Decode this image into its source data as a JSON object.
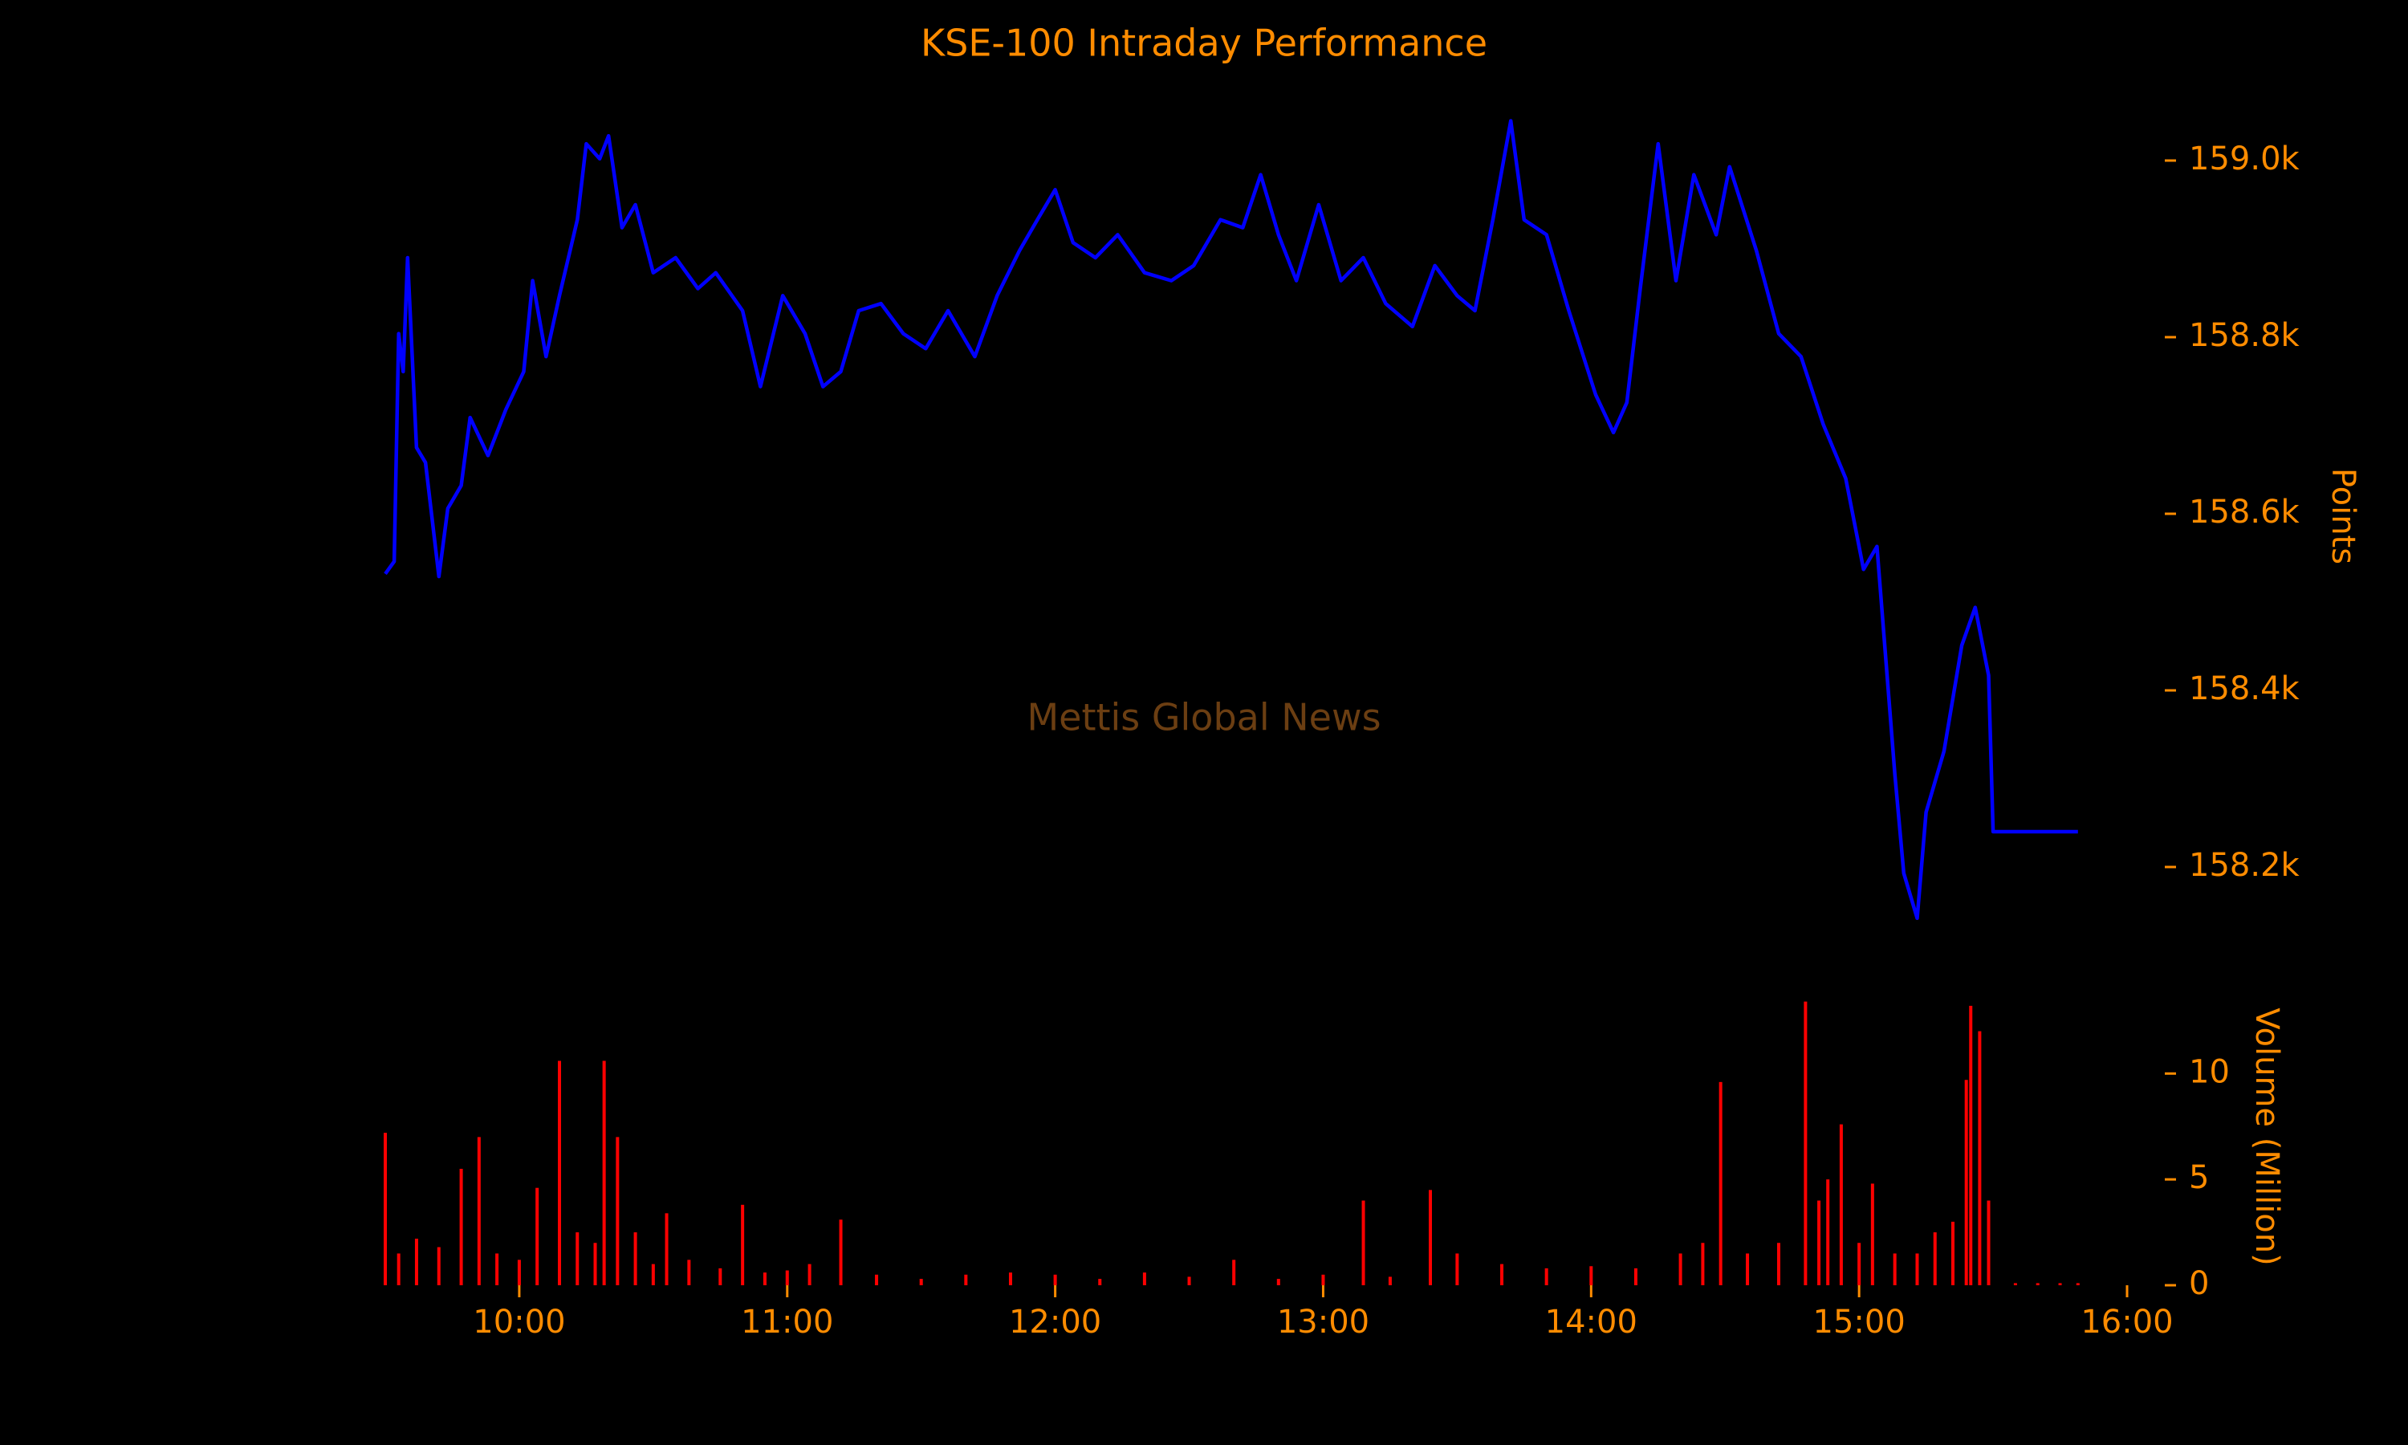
{
  "chart_data": [
    {
      "type": "line",
      "title": "KSE-100 Intraday Performance",
      "ylabel": "Points",
      "annotations": [
        "Mettis Global News"
      ],
      "xlim": [
        "09:30",
        "16:00"
      ],
      "ylim": [
        158130,
        159060
      ],
      "yticks": [
        {
          "value": 158200,
          "label": "158.2k"
        },
        {
          "value": 158400,
          "label": "158.4k"
        },
        {
          "value": 158600,
          "label": "158.6k"
        },
        {
          "value": 158800,
          "label": "158.8k"
        },
        {
          "value": 159000,
          "label": "159.0k"
        }
      ],
      "x": [
        "09:30",
        "09:32",
        "09:33",
        "09:34",
        "09:35",
        "09:37",
        "09:39",
        "09:42",
        "09:44",
        "09:47",
        "09:49",
        "09:53",
        "09:57",
        "10:01",
        "10:03",
        "10:06",
        "10:09",
        "10:13",
        "10:15",
        "10:18",
        "10:20",
        "10:23",
        "10:26",
        "10:30",
        "10:35",
        "10:40",
        "10:44",
        "10:50",
        "10:54",
        "10:59",
        "11:04",
        "11:08",
        "11:12",
        "11:16",
        "11:21",
        "11:26",
        "11:31",
        "11:36",
        "11:42",
        "11:47",
        "11:52",
        "11:56",
        "12:00",
        "12:04",
        "12:09",
        "12:14",
        "12:20",
        "12:26",
        "12:31",
        "12:37",
        "12:42",
        "12:46",
        "12:50",
        "12:54",
        "12:59",
        "13:04",
        "13:09",
        "13:14",
        "13:20",
        "13:25",
        "13:30",
        "13:34",
        "13:38",
        "13:42",
        "13:45",
        "13:50",
        "13:55",
        "14:01",
        "14:05",
        "14:08",
        "14:11",
        "14:15",
        "14:19",
        "14:23",
        "14:28",
        "14:31",
        "14:37",
        "14:42",
        "14:47",
        "14:52",
        "14:57",
        "15:01",
        "15:04",
        "15:08",
        "15:10",
        "15:13",
        "15:15",
        "15:19",
        "15:23",
        "15:26",
        "15:29",
        "15:30",
        "15:49"
      ],
      "series": [
        {
          "name": "KSE-100",
          "color": "#0000ff",
          "values": [
            158532,
            158546,
            158804,
            158761,
            158890,
            158675,
            158658,
            158529,
            158606,
            158632,
            158709,
            158666,
            158718,
            158761,
            158864,
            158778,
            158847,
            158933,
            159019,
            159002,
            159028,
            158924,
            158950,
            158873,
            158890,
            158855,
            158873,
            158830,
            158744,
            158847,
            158804,
            158744,
            158761,
            158830,
            158838,
            158804,
            158787,
            158830,
            158778,
            158847,
            158898,
            158933,
            158967,
            158907,
            158890,
            158916,
            158873,
            158864,
            158881,
            158933,
            158924,
            158984,
            158916,
            158864,
            158950,
            158864,
            158890,
            158838,
            158812,
            158881,
            158847,
            158830,
            158933,
            159045,
            158933,
            158916,
            158830,
            158735,
            158692,
            158726,
            158855,
            159019,
            158864,
            158984,
            158916,
            158993,
            158898,
            158804,
            158778,
            158701,
            158640,
            158537,
            158563,
            158305,
            158193,
            158142,
            158262,
            158331,
            158451,
            158494,
            158417,
            158240,
            158240
          ]
        }
      ]
    },
    {
      "type": "bar",
      "ylabel": "Volume (Million)",
      "xlim": [
        "09:30",
        "16:00"
      ],
      "xticks": [
        "10:00",
        "11:00",
        "12:00",
        "13:00",
        "14:00",
        "15:00",
        "16:00"
      ],
      "ylim": [
        0,
        13.5
      ],
      "yticks": [
        0,
        5,
        10
      ],
      "x": [
        "09:30",
        "09:33",
        "09:37",
        "09:42",
        "09:47",
        "09:51",
        "09:55",
        "10:00",
        "10:04",
        "10:09",
        "10:13",
        "10:17",
        "10:19",
        "10:22",
        "10:26",
        "10:30",
        "10:33",
        "10:38",
        "10:45",
        "10:50",
        "10:55",
        "11:00",
        "11:05",
        "11:12",
        "11:20",
        "11:30",
        "11:40",
        "11:50",
        "12:00",
        "12:10",
        "12:20",
        "12:30",
        "12:40",
        "12:50",
        "13:00",
        "13:09",
        "13:15",
        "13:24",
        "13:30",
        "13:40",
        "13:50",
        "14:00",
        "14:10",
        "14:20",
        "14:25",
        "14:29",
        "14:35",
        "14:42",
        "14:48",
        "14:51",
        "14:53",
        "14:56",
        "15:00",
        "15:03",
        "15:08",
        "15:13",
        "15:17",
        "15:21",
        "15:24",
        "15:25",
        "15:27",
        "15:29",
        "15:35",
        "15:40",
        "15:45",
        "15:49"
      ],
      "color": "#ff0000",
      "values": [
        7.2,
        1.5,
        2.2,
        1.8,
        5.5,
        7.0,
        1.5,
        1.2,
        4.6,
        10.6,
        2.5,
        2.0,
        10.6,
        7.0,
        2.5,
        1.0,
        3.4,
        1.2,
        0.8,
        3.8,
        0.6,
        0.7,
        1.0,
        3.1,
        0.5,
        0.3,
        0.5,
        0.6,
        0.5,
        0.3,
        0.6,
        0.4,
        1.2,
        0.3,
        0.5,
        4.0,
        0.4,
        4.5,
        1.5,
        1.0,
        0.8,
        0.9,
        0.8,
        1.5,
        2.0,
        9.6,
        1.5,
        2.0,
        13.4,
        4.0,
        5.0,
        7.6,
        2.0,
        4.8,
        1.5,
        1.5,
        2.5,
        3.0,
        9.7,
        13.2,
        12.0,
        4.0,
        0.1,
        0.1,
        0.1,
        0.1
      ]
    }
  ]
}
